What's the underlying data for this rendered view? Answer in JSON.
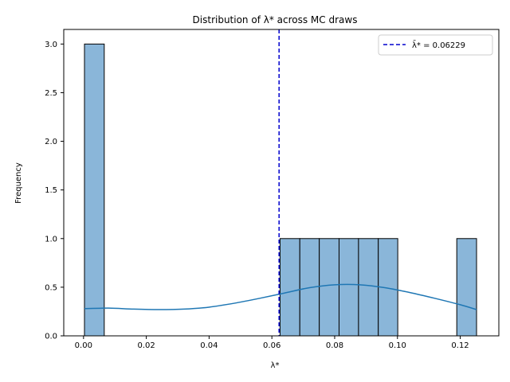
{
  "chart_data": {
    "type": "bar",
    "title": "Distribution of λ* across MC draws",
    "xlabel": "λ*",
    "ylabel": "Frequency",
    "xlim": [
      -0.0063,
      0.1323
    ],
    "ylim": [
      0,
      3.15
    ],
    "x_ticks": [
      "0.00",
      "0.02",
      "0.04",
      "0.06",
      "0.08",
      "0.10",
      "0.12"
    ],
    "x_tick_values": [
      0.0,
      0.02,
      0.04,
      0.06,
      0.08,
      0.1,
      0.12
    ],
    "y_ticks": [
      "0.0",
      "0.5",
      "1.0",
      "1.5",
      "2.0",
      "2.5",
      "3.0"
    ],
    "y_tick_values": [
      0.0,
      0.5,
      1.0,
      1.5,
      2.0,
      2.5,
      3.0
    ],
    "bins": [
      {
        "x0": 0.0003,
        "x1": 0.0066,
        "count": 3
      },
      {
        "x0": 0.0626,
        "x1": 0.0689,
        "count": 1
      },
      {
        "x0": 0.0689,
        "x1": 0.0751,
        "count": 1
      },
      {
        "x0": 0.0751,
        "x1": 0.0814,
        "count": 1
      },
      {
        "x0": 0.0814,
        "x1": 0.0876,
        "count": 1
      },
      {
        "x0": 0.0876,
        "x1": 0.0939,
        "count": 1
      },
      {
        "x0": 0.0939,
        "x1": 0.1001,
        "count": 1
      },
      {
        "x0": 0.1189,
        "x1": 0.1252,
        "count": 1
      }
    ],
    "kde": {
      "x": [
        0.0003,
        0.008,
        0.016,
        0.024,
        0.032,
        0.04,
        0.048,
        0.056,
        0.064,
        0.072,
        0.08,
        0.088,
        0.096,
        0.104,
        0.112,
        0.12,
        0.1252
      ],
      "y": [
        0.28,
        0.285,
        0.275,
        0.27,
        0.275,
        0.295,
        0.335,
        0.385,
        0.44,
        0.495,
        0.525,
        0.525,
        0.495,
        0.445,
        0.385,
        0.32,
        0.27
      ]
    },
    "mean_line": {
      "x": 0.06229,
      "label": "λ̄* = 0.06229",
      "color": "#0000cd"
    },
    "colors": {
      "bar_fill": "#8ab6d9",
      "bar_edge": "#000000",
      "kde": "#1f77b4"
    },
    "legend_position": "top-right"
  }
}
